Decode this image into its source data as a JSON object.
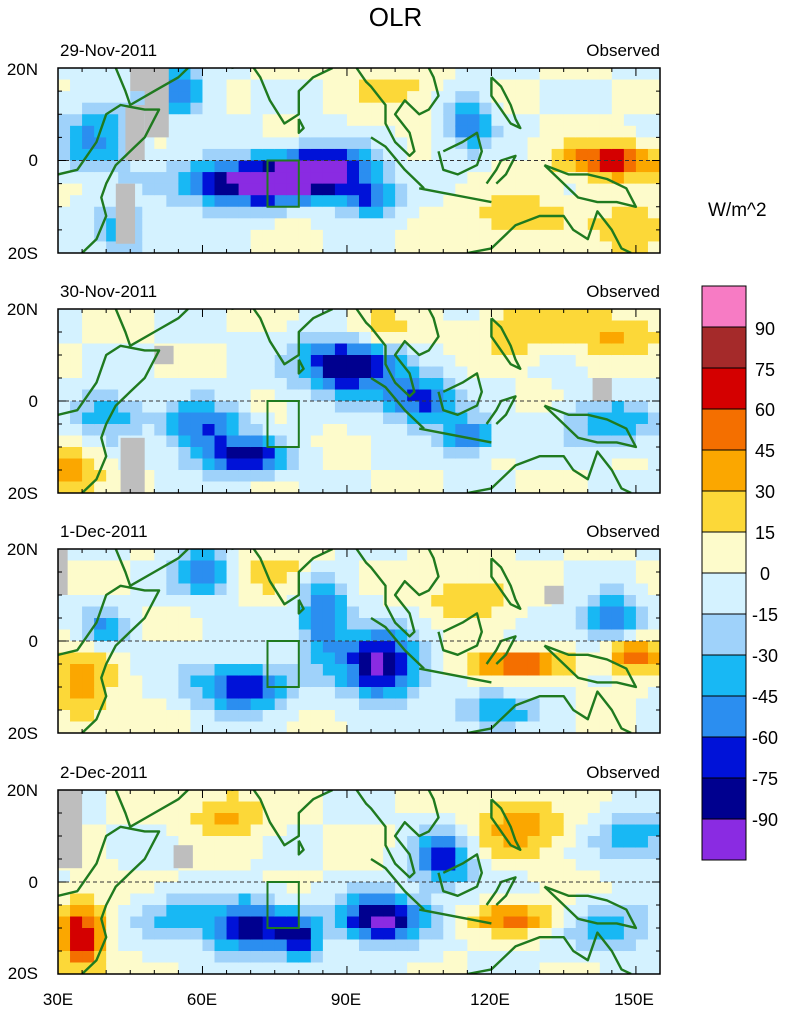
{
  "title": "OLR",
  "units": "W/m^2",
  "panels": [
    {
      "date": "29-Nov-2011",
      "label": "Observed"
    },
    {
      "date": "30-Nov-2011",
      "label": "Observed"
    },
    {
      "date": "1-Dec-2011",
      "label": "Observed"
    },
    {
      "date": "2-Dec-2011",
      "label": "Observed"
    }
  ],
  "lat_labels": [
    "20N",
    "0",
    "20S"
  ],
  "lon_labels": [
    "30E",
    "60E",
    "90E",
    "120E",
    "150E"
  ],
  "colorbar": {
    "labels": [
      "90",
      "75",
      "60",
      "45",
      "30",
      "15",
      "0",
      "-15",
      "-30",
      "-45",
      "-60",
      "-75",
      "-90"
    ],
    "colors": [
      "#f77bc4",
      "#a52a2a",
      "#d40000",
      "#f46f00",
      "#fba700",
      "#fcd838",
      "#fdfbcb",
      "#d4f2ff",
      "#9fd2fa",
      "#18b8f4",
      "#2b8ef0",
      "#0012d8",
      "#00008f",
      "#8a2be2"
    ]
  },
  "map_colors": {
    "land_outline": "#1f7a1f",
    "missing": "#bebebe"
  }
}
